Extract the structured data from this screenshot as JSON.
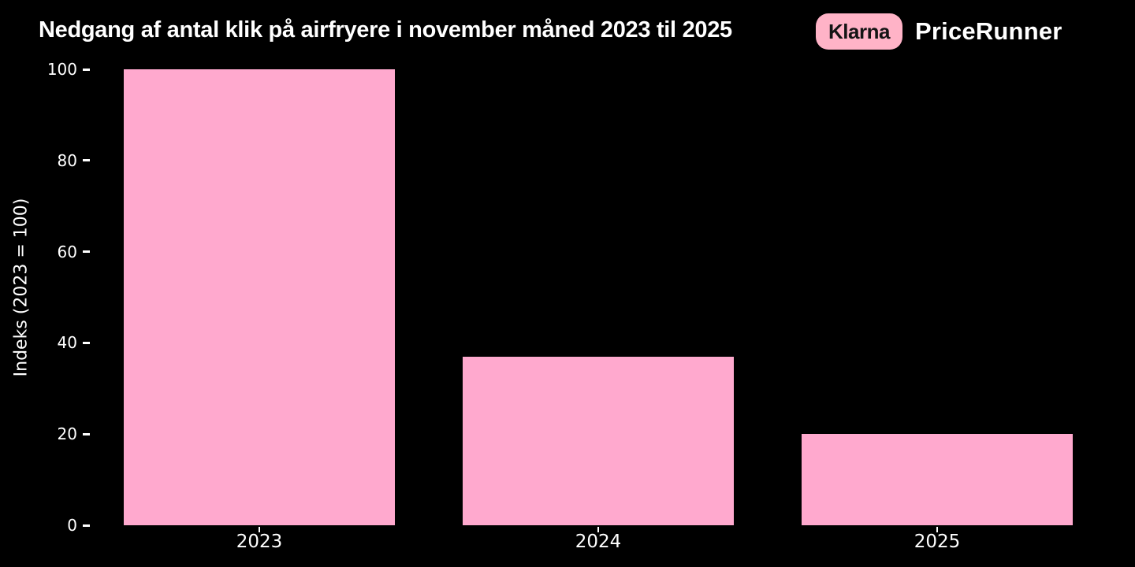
{
  "page": {
    "background_color": "#000000"
  },
  "header": {
    "title": "Nedgang af antal klik på airfryere i november måned 2023 til 2025",
    "brand": {
      "klarna_label": "Klarna",
      "klarna_badge_color": "#FFB3C7",
      "klarna_text_color": "#141414",
      "pricerunner_label": "PriceRunner",
      "pricerunner_text_color": "#FFFFFF"
    }
  },
  "chart_data": {
    "type": "bar",
    "title": "Nedgang af antal klik på airfryere i november måned 2023 til 2025",
    "categories": [
      "2023",
      "2024",
      "2025"
    ],
    "values": [
      100,
      37,
      20
    ],
    "xlabel": "",
    "ylabel": "Indeks (2023 = 100)",
    "ylim": [
      0,
      100
    ],
    "yticks": [
      0,
      20,
      40,
      60,
      80,
      100
    ],
    "bar_color": "#FFA9CE",
    "axis_text_color": "#FFFFFF",
    "background_color": "#000000",
    "grid": false,
    "legend": false
  }
}
